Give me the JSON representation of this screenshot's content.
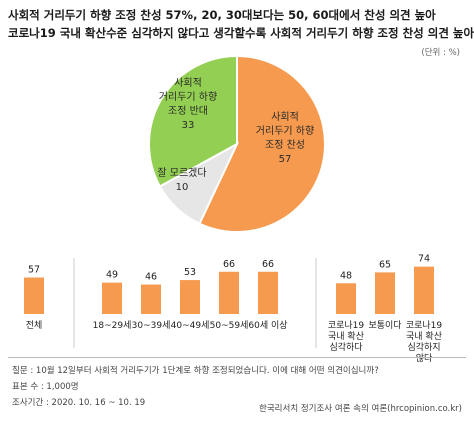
{
  "title_lines": [
    "사회적 거리두기 하향 조정 찬성 57%, 20, 30대보다는 50, 60대에서 찬성 의견 높아",
    "코로나19 국내 확산수준 심각하지 않다고 생각할수록 사회적 거리두기 하향 조정 찬성 의견 높아"
  ],
  "unit_label": "(단위 : %)",
  "colors": {
    "orange": "#f59a4f",
    "green": "#93cf52",
    "grey": "#e6e6e6",
    "bar": "#f59a4f",
    "separator": "#bbbbbb"
  },
  "chart_data": [
    {
      "type": "pie",
      "slices": [
        {
          "label_lines": [
            "사회적",
            "거리두기 하향",
            "조정 찬성"
          ],
          "value": 57,
          "value_label": "57",
          "color": "#f59a4f"
        },
        {
          "label_lines": [
            "잘 모르겠다"
          ],
          "value": 10,
          "value_label": "10",
          "color": "#e6e6e6"
        },
        {
          "label_lines": [
            "사회적",
            "거리두기 하향",
            "조정 반대"
          ],
          "value": 33,
          "value_label": "33",
          "color": "#93cf52"
        }
      ]
    },
    {
      "type": "bar",
      "groups": [
        {
          "categories": [
            {
              "label_lines": [
                "전체"
              ],
              "value": 57
            }
          ]
        },
        {
          "categories": [
            {
              "label_lines": [
                "18~29세"
              ],
              "value": 49
            },
            {
              "label_lines": [
                "30~39세"
              ],
              "value": 46
            },
            {
              "label_lines": [
                "40~49세"
              ],
              "value": 53
            },
            {
              "label_lines": [
                "50~59세"
              ],
              "value": 66
            },
            {
              "label_lines": [
                "60세 이상"
              ],
              "value": 66
            }
          ]
        },
        {
          "categories": [
            {
              "label_lines": [
                "코로나19",
                "국내 확산",
                "심각하다"
              ],
              "value": 48
            },
            {
              "label_lines": [
                "보통이다"
              ],
              "value": 65
            },
            {
              "label_lines": [
                "코로나19",
                "국내 확산",
                "심각하지",
                "않다"
              ],
              "value": 74
            }
          ]
        }
      ],
      "ylim": [
        0,
        100
      ]
    }
  ],
  "footer": {
    "question": "질문 : 10월 12일부터 사회적 거리두기가 1단계로 하향 조정되었습니다. 이에 대해 어떤 의견이십니까?",
    "sample": "표본 수 : 1,000명",
    "period": "조사기간 : 2020. 10. 16 ~ 10. 19",
    "credit": "한국리서치 정기조사 여론 속의 여론(hrcopinion.co.kr)"
  }
}
